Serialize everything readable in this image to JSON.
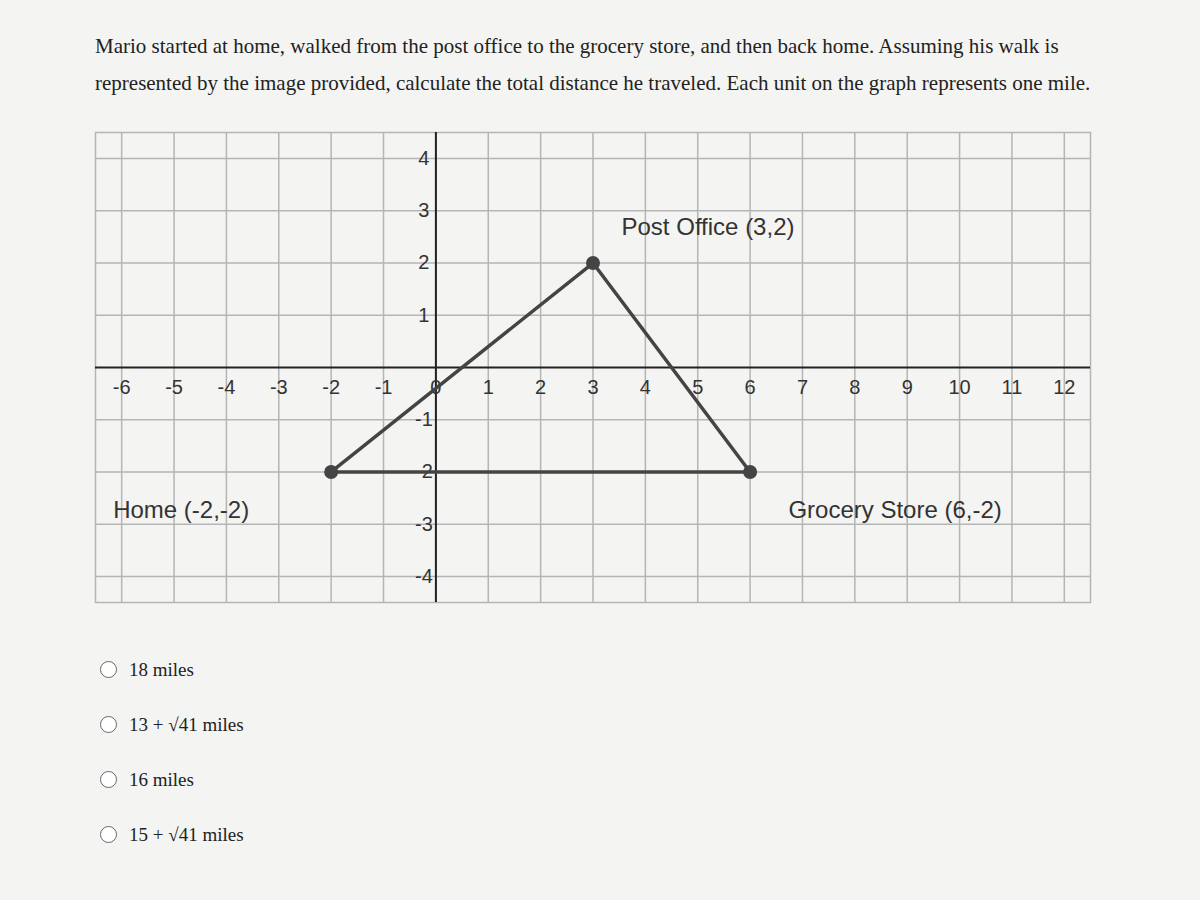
{
  "question": "Mario started at home, walked from the post office to the grocery store, and then back home. Assuming his walk is represented by the image provided, calculate the total distance he traveled. Each unit on the graph represents one mile.",
  "options": [
    "18 miles",
    "13 + √41 miles",
    "16 miles",
    "15 + √41 miles"
  ],
  "chart_data": {
    "type": "line",
    "x": [
      -2,
      3,
      6,
      -2
    ],
    "values": [
      -2,
      2,
      -2,
      -2
    ],
    "color": "#444444",
    "marker": "circle",
    "grid": true,
    "xlim": [
      -6.5,
      12.5
    ],
    "ylim": [
      -4.5,
      4.5
    ],
    "xticks": [
      -6,
      -5,
      -4,
      -3,
      -2,
      -1,
      0,
      1,
      2,
      3,
      4,
      5,
      6,
      7,
      8,
      9,
      10,
      11,
      12
    ],
    "yticks": [
      -4,
      -3,
      -2,
      -1,
      1,
      2,
      3,
      4
    ],
    "annotations": [
      {
        "text": "Home (-2,-2)",
        "x": -2,
        "y": -2
      },
      {
        "text": "Post Office (3,2)",
        "x": 3,
        "y": 2
      },
      {
        "text": "Grocery Store (6,-2)",
        "x": 6,
        "y": -2
      }
    ]
  }
}
